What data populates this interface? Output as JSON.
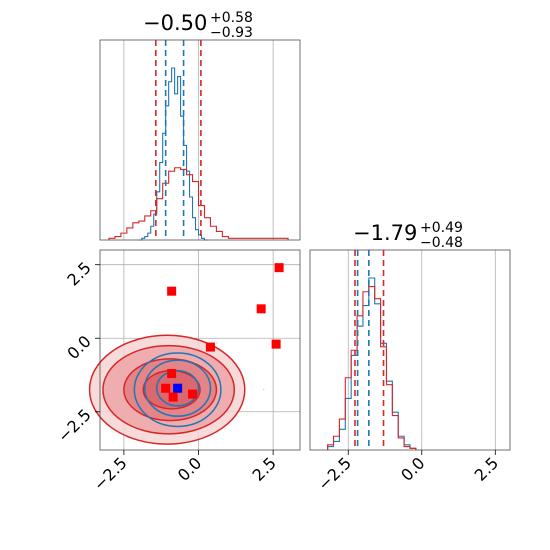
{
  "colors": {
    "blue_series": "#1f77b4",
    "red_series": "#d62728",
    "red_fill": "#e8a0a2",
    "red_fill_dark": "#d8636a",
    "red_marker": "#ff0000",
    "blue_marker": "#0000ff",
    "grid": "#b0b0b0",
    "frame": "#4d4d4d"
  },
  "chart_data": [
    {
      "type": "histogram",
      "panel": "marginal-x",
      "title_value": "−0.50",
      "title_plus": "+0.58",
      "title_minus": "−0.93",
      "xlim": [
        -3.3,
        3.4
      ],
      "series": [
        {
          "color": "#1f77b4",
          "bin_edges": [
            -2.0,
            -1.9,
            -1.8,
            -1.7,
            -1.6,
            -1.5,
            -1.4,
            -1.3,
            -1.2,
            -1.1,
            -1.0,
            -0.9,
            -0.8,
            -0.7,
            -0.6,
            -0.5,
            -0.4,
            -0.3,
            -0.2,
            -0.1,
            0.0,
            0.1,
            0.2,
            0.3
          ],
          "counts": [
            0,
            0.01,
            0.02,
            0.04,
            0.08,
            0.15,
            0.28,
            0.45,
            0.62,
            0.78,
            0.92,
            1.0,
            0.85,
            0.95,
            0.72,
            0.55,
            0.4,
            0.25,
            0.13,
            0.06,
            0.03,
            0.01,
            0
          ]
        },
        {
          "color": "#d62728",
          "bin_edges": [
            -3.0,
            -2.8,
            -2.6,
            -2.4,
            -2.2,
            -2.0,
            -1.8,
            -1.6,
            -1.4,
            -1.2,
            -1.0,
            -0.8,
            -0.6,
            -0.4,
            -0.2,
            0.0,
            0.2,
            0.4,
            0.6,
            0.8,
            1.0,
            1.2,
            1.4,
            1.6,
            1.8,
            2.0,
            2.2,
            2.4,
            2.6,
            2.8,
            3.0
          ],
          "counts": [
            0.01,
            0.02,
            0.04,
            0.07,
            0.1,
            0.11,
            0.14,
            0.17,
            0.24,
            0.33,
            0.4,
            0.42,
            0.41,
            0.38,
            0.34,
            0.2,
            0.13,
            0.08,
            0.05,
            0.02,
            0.01,
            0.01,
            0.01,
            0.01,
            0.01,
            0.01,
            0.01,
            0.01,
            0.01,
            0.01
          ]
        }
      ],
      "quantile_lines": [
        {
          "color": "#d62728",
          "x": -1.43
        },
        {
          "color": "#1f77b4",
          "x": -1.1
        },
        {
          "color": "#1f77b4",
          "x": -0.5
        },
        {
          "color": "#d62728",
          "x": 0.08
        }
      ],
      "xgrid": [
        -2.5,
        0.0,
        2.5
      ]
    },
    {
      "type": "scatter",
      "panel": "joint",
      "xlim": [
        -3.3,
        3.4
      ],
      "ylim": [
        -3.8,
        3.0
      ],
      "xticks": [
        "−2.5",
        "0.0",
        "2.5"
      ],
      "yticks": [
        "2.5",
        "0.0",
        "−2.5"
      ],
      "xtick_values": [
        -2.5,
        0.0,
        2.5
      ],
      "ytick_values": [
        2.5,
        0.0,
        -2.5
      ],
      "red_markers": [
        [
          -0.9,
          1.6
        ],
        [
          2.7,
          2.4
        ],
        [
          2.1,
          1.0
        ],
        [
          0.4,
          -0.3
        ],
        [
          2.6,
          -0.2
        ],
        [
          -1.1,
          -1.7
        ],
        [
          -0.9,
          -1.2
        ],
        [
          -0.2,
          -1.9
        ],
        [
          -0.85,
          -2.0
        ]
      ],
      "blue_markers": [
        [
          -0.7,
          -1.7
        ]
      ],
      "red_contours": [
        {
          "cx": -1.05,
          "cy": -1.75,
          "rx": 2.6,
          "ry": 1.85
        },
        {
          "cx": -1.0,
          "cy": -1.75,
          "rx": 2.2,
          "ry": 1.5
        },
        {
          "cx": -0.95,
          "cy": -1.75,
          "rx": 1.55,
          "ry": 1.05
        },
        {
          "cx": -0.9,
          "cy": -1.75,
          "rx": 0.95,
          "ry": 0.65
        }
      ],
      "blue_contours": [
        {
          "cx": -0.7,
          "cy": -1.75,
          "rx": 1.45,
          "ry": 1.25
        },
        {
          "cx": -0.7,
          "cy": -1.7,
          "rx": 1.1,
          "ry": 0.95
        },
        {
          "cx": -0.7,
          "cy": -1.7,
          "rx": 0.7,
          "ry": 0.6
        }
      ]
    },
    {
      "type": "histogram",
      "panel": "marginal-y",
      "title_value": "−1.79",
      "title_plus": "+0.49",
      "title_minus": "−0.48",
      "xlim": [
        -3.8,
        3.0
      ],
      "xticks": [
        "−2.5",
        "0.0",
        "2.5"
      ],
      "xtick_values": [
        -2.5,
        0.0,
        2.5
      ],
      "series": [
        {
          "color": "#1f77b4",
          "bin_edges": [
            -3.2,
            -3.0,
            -2.8,
            -2.6,
            -2.4,
            -2.2,
            -2.0,
            -1.8,
            -1.6,
            -1.4,
            -1.2,
            -1.0,
            -0.8,
            -0.6,
            -0.4,
            -0.2
          ],
          "counts": [
            0.02,
            0.05,
            0.12,
            0.3,
            0.55,
            0.72,
            0.84,
            1.0,
            0.85,
            0.62,
            0.4,
            0.22,
            0.08,
            0.03,
            0.01
          ]
        },
        {
          "color": "#d62728",
          "bin_edges": [
            -3.2,
            -3.0,
            -2.8,
            -2.6,
            -2.4,
            -2.2,
            -2.0,
            -1.8,
            -1.6,
            -1.4,
            -1.2,
            -1.0,
            -0.8,
            -0.6,
            -0.4,
            -0.2
          ],
          "counts": [
            0.03,
            0.08,
            0.18,
            0.42,
            0.58,
            0.78,
            0.92,
            0.95,
            0.88,
            0.6,
            0.38,
            0.2,
            0.07,
            0.02,
            0.01
          ]
        }
      ],
      "quantile_lines": [
        {
          "color": "#d62728",
          "x": -2.27
        },
        {
          "color": "#1f77b4",
          "x": -2.18
        },
        {
          "color": "#1f77b4",
          "x": -1.8
        },
        {
          "color": "#d62728",
          "x": -1.3
        }
      ],
      "xgrid": [
        -2.5,
        0.0,
        2.5
      ]
    }
  ]
}
